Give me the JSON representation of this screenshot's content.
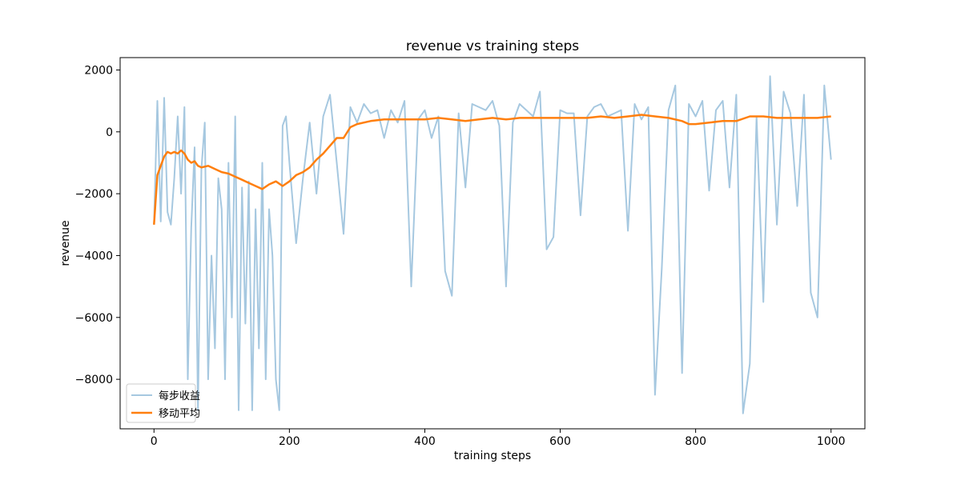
{
  "chart_data": {
    "type": "line",
    "title": "revenue vs training steps",
    "xlabel": "training steps",
    "ylabel": "revenue",
    "xlim": [
      -50,
      1050
    ],
    "ylim": [
      -9600,
      2400
    ],
    "x_ticks": [
      0,
      200,
      400,
      600,
      800,
      1000
    ],
    "x_tick_labels": [
      "0",
      "200",
      "400",
      "600",
      "800",
      "1000"
    ],
    "y_ticks": [
      2000,
      0,
      -2000,
      -4000,
      -6000,
      -8000
    ],
    "y_tick_labels": [
      "2000",
      "0",
      "−2000",
      "−4000",
      "−6000",
      "−8000"
    ],
    "grid": false,
    "legend_position": "lower-left",
    "series": [
      {
        "name": "每步收益",
        "color": "#a6c8e0",
        "x": [
          0,
          5,
          10,
          15,
          20,
          25,
          30,
          35,
          40,
          45,
          50,
          55,
          60,
          65,
          70,
          75,
          80,
          85,
          90,
          95,
          100,
          105,
          110,
          115,
          120,
          125,
          130,
          135,
          140,
          145,
          150,
          155,
          160,
          165,
          170,
          175,
          180,
          185,
          190,
          195,
          200,
          210,
          220,
          230,
          240,
          250,
          260,
          270,
          280,
          290,
          300,
          310,
          320,
          330,
          340,
          350,
          360,
          370,
          380,
          390,
          400,
          410,
          420,
          430,
          440,
          450,
          460,
          470,
          480,
          490,
          500,
          510,
          520,
          530,
          540,
          550,
          560,
          570,
          580,
          590,
          600,
          610,
          620,
          630,
          640,
          650,
          660,
          670,
          680,
          690,
          700,
          710,
          720,
          730,
          740,
          750,
          760,
          770,
          780,
          790,
          800,
          810,
          820,
          830,
          840,
          850,
          860,
          870,
          880,
          890,
          900,
          910,
          920,
          930,
          940,
          950,
          960,
          970,
          980,
          990,
          1000
        ],
        "values": [
          -3000,
          1000,
          -2900,
          1100,
          -2600,
          -3000,
          -1500,
          500,
          -2000,
          800,
          -8000,
          -3100,
          -500,
          -9000,
          -1200,
          300,
          -8000,
          -4000,
          -7000,
          -1500,
          -2500,
          -8000,
          -1000,
          -6000,
          500,
          -9000,
          -1800,
          -6200,
          -1600,
          -9000,
          -2500,
          -7000,
          -1000,
          -8000,
          -2500,
          -4000,
          -8000,
          -9000,
          200,
          500,
          -1000,
          -3600,
          -1500,
          300,
          -2000,
          500,
          1200,
          -1000,
          -3300,
          800,
          300,
          900,
          600,
          700,
          -200,
          700,
          300,
          1000,
          -5000,
          400,
          700,
          -200,
          500,
          -4500,
          -5300,
          600,
          -1800,
          900,
          800,
          700,
          1000,
          200,
          -5000,
          300,
          900,
          700,
          500,
          1300,
          -3800,
          -3400,
          700,
          600,
          600,
          -2700,
          500,
          800,
          900,
          500,
          600,
          700,
          -3200,
          900,
          400,
          800,
          -8500,
          -4400,
          700,
          1500,
          -7800,
          900,
          500,
          1000,
          -1900,
          700,
          1000,
          -1800,
          1200,
          -9100,
          -7500,
          500,
          -5500,
          1800,
          -3000,
          1300,
          600,
          -2400,
          1200,
          -5200,
          -6000,
          1500,
          -900
        ]
      },
      {
        "name": "移动平均",
        "color": "#ff7f0e",
        "x": [
          0,
          5,
          10,
          15,
          20,
          25,
          30,
          35,
          40,
          45,
          50,
          55,
          60,
          65,
          70,
          80,
          90,
          100,
          110,
          120,
          130,
          140,
          150,
          160,
          170,
          180,
          190,
          200,
          210,
          220,
          230,
          240,
          250,
          260,
          270,
          280,
          290,
          300,
          320,
          340,
          360,
          380,
          400,
          420,
          440,
          460,
          480,
          500,
          520,
          540,
          560,
          580,
          600,
          620,
          640,
          660,
          680,
          700,
          720,
          740,
          760,
          780,
          790,
          800,
          820,
          840,
          860,
          880,
          900,
          920,
          940,
          960,
          980,
          1000
        ],
        "values": [
          -3000,
          -1400,
          -1100,
          -800,
          -650,
          -700,
          -650,
          -700,
          -600,
          -700,
          -900,
          -1000,
          -950,
          -1100,
          -1150,
          -1100,
          -1200,
          -1300,
          -1350,
          -1450,
          -1550,
          -1650,
          -1750,
          -1850,
          -1700,
          -1600,
          -1750,
          -1600,
          -1400,
          -1300,
          -1150,
          -900,
          -700,
          -450,
          -200,
          -200,
          150,
          250,
          350,
          400,
          400,
          400,
          400,
          450,
          400,
          350,
          400,
          450,
          400,
          450,
          450,
          450,
          450,
          450,
          450,
          500,
          450,
          500,
          550,
          500,
          450,
          350,
          250,
          250,
          300,
          350,
          350,
          500,
          500,
          450,
          450,
          450,
          450,
          500
        ]
      }
    ]
  }
}
